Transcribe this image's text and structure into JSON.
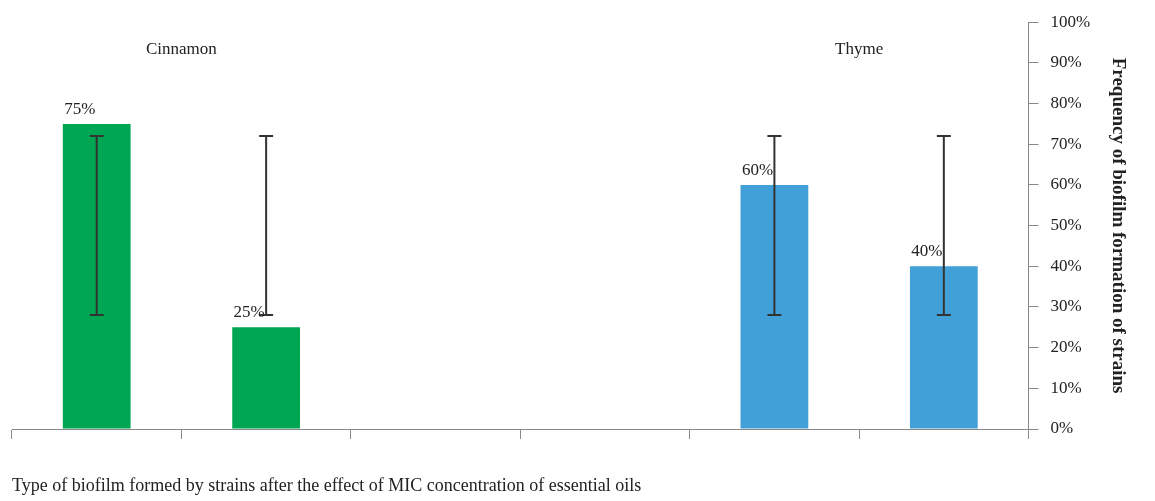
{
  "chart_data": {
    "type": "bar",
    "categories": [
      null,
      null,
      null,
      null,
      null,
      null
    ],
    "values": [
      75,
      25,
      null,
      null,
      60,
      40
    ],
    "colors": [
      "#00a651",
      "#00a651",
      null,
      null,
      "#41a0d8",
      "#41a0d8"
    ],
    "errors": [
      [
        28,
        72
      ],
      [
        28,
        72
      ],
      null,
      null,
      [
        28,
        72
      ],
      [
        28,
        72
      ]
    ],
    "value_labels": [
      "75%",
      "25%",
      null,
      null,
      "60%",
      "40%"
    ],
    "ylim": [
      0,
      100
    ],
    "yticks": [
      {
        "value": 0,
        "label": "0%"
      },
      {
        "value": 10,
        "label": "10%"
      },
      {
        "value": 20,
        "label": "20%"
      },
      {
        "value": 30,
        "label": "30%"
      },
      {
        "value": 40,
        "label": "40%"
      },
      {
        "value": 50,
        "label": "50%"
      },
      {
        "value": 60,
        "label": "60%"
      },
      {
        "value": 70,
        "label": "70%"
      },
      {
        "value": 80,
        "label": "80%"
      },
      {
        "value": 90,
        "label": "90%"
      },
      {
        "value": 100,
        "label": "100%"
      }
    ],
    "xlabel": "Type of biofilm formed by strains after the effect of MIC concentration of essential oils",
    "ylabel": "Frequency of biofilm formation of strains",
    "annotations": [
      "Cinnamon",
      "Thyme"
    ],
    "grid": false,
    "legend": false
  }
}
